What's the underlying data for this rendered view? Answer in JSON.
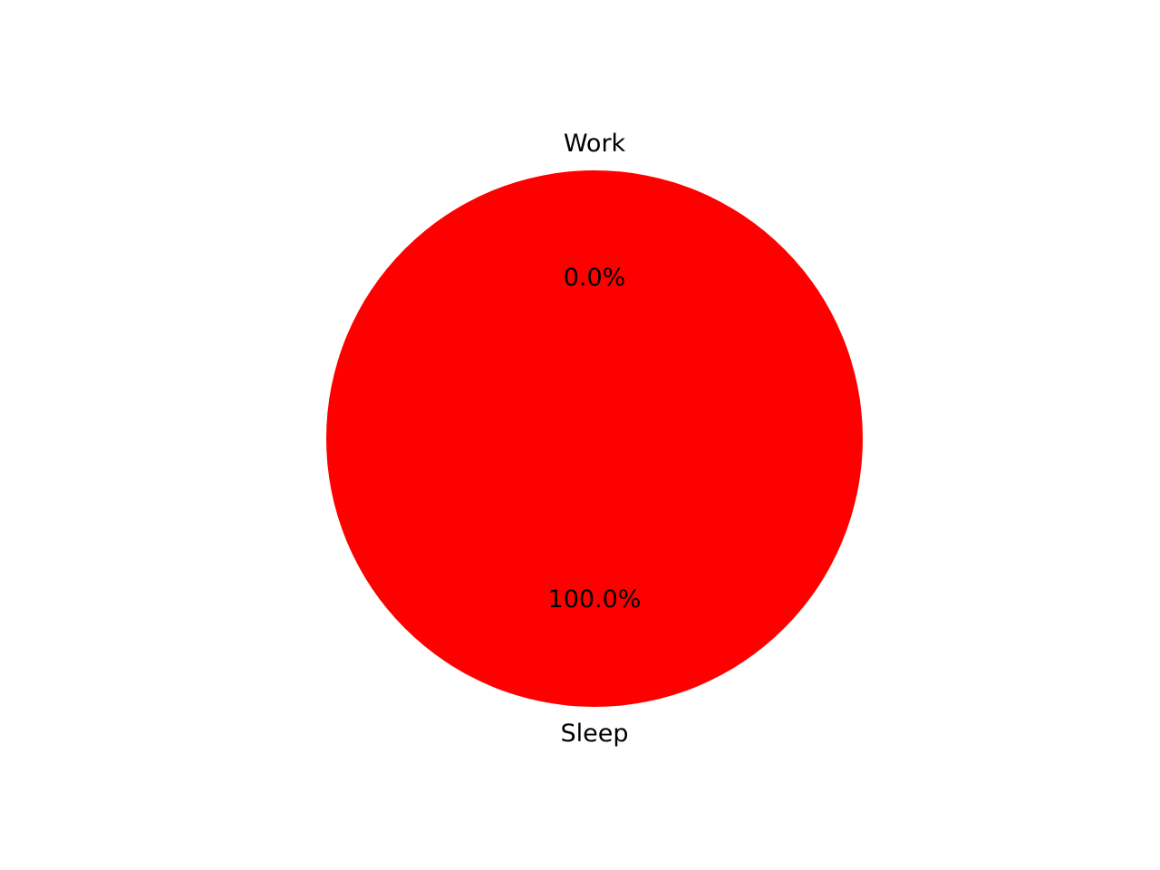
{
  "chart_data": {
    "type": "pie",
    "title": "",
    "slices": [
      {
        "label": "Work",
        "value": 0.0,
        "percent_label": "0.0%",
        "color": "#ff0000"
      },
      {
        "label": "Sleep",
        "value": 100.0,
        "percent_label": "100.0%",
        "color": "#ff0000"
      }
    ],
    "legend": "none",
    "grid": false
  }
}
